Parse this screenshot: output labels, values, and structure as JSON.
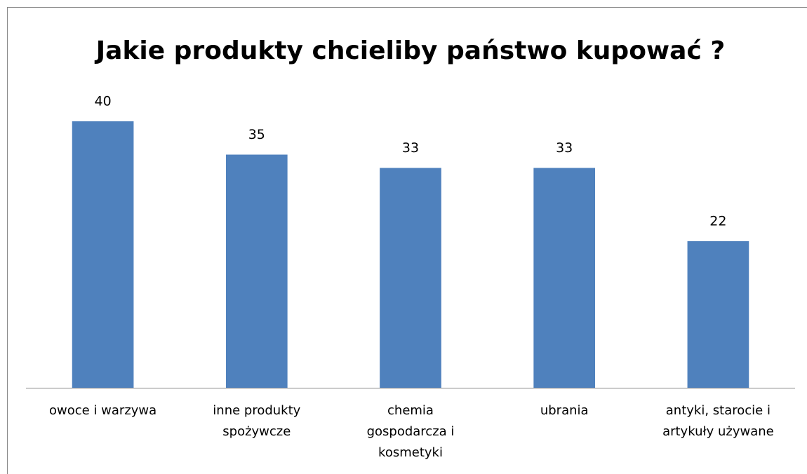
{
  "chart_data": {
    "type": "bar",
    "title": "Jakie produkty chcieliby państwo kupować ?",
    "categories": [
      "owoce i warzywa",
      "inne produkty spożywcze",
      "chemia gospodarcza i kosmetyki",
      "ubrania",
      "antyki, starocie i artykuły używane"
    ],
    "values": [
      40,
      35,
      33,
      33,
      22
    ],
    "color": "#4f81bd",
    "ylim": [
      0,
      40
    ]
  }
}
